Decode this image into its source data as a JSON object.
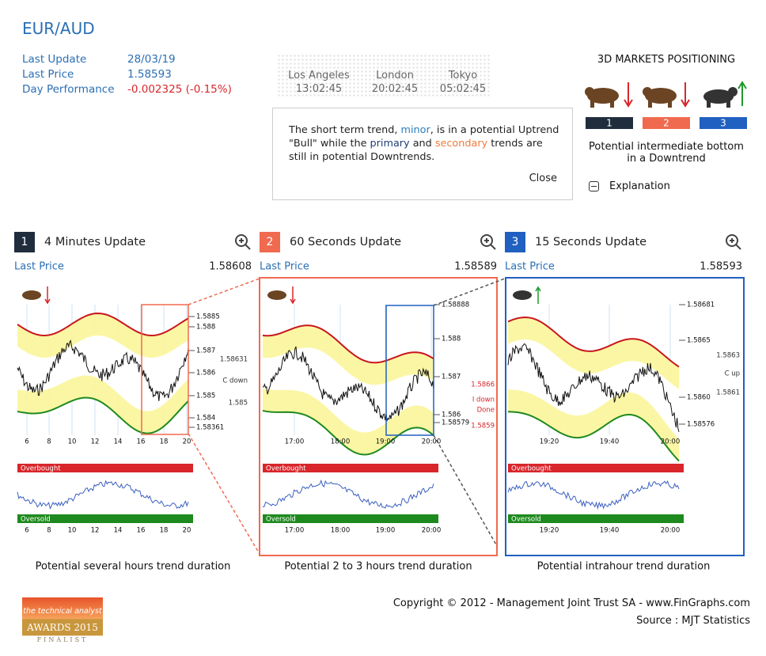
{
  "header": {
    "symbol": "EUR/AUD",
    "last_update_label": "Last Update",
    "last_update": "28/03/19",
    "last_price_label": "Last Price",
    "last_price": "1.58593",
    "day_perf_label": "Day Performance",
    "day_perf": "-0.002325 (-0.15%)"
  },
  "clocks": [
    {
      "city": "Los Angeles",
      "time": "13:02:45"
    },
    {
      "city": "London",
      "time": "20:02:45"
    },
    {
      "city": "Tokyo",
      "time": "05:02:45"
    }
  ],
  "note": {
    "parts": [
      "The short term trend, ",
      "minor",
      ", is in a potential Uptrend \"Bull\" while the ",
      "primary",
      " and ",
      "secondary",
      " trends are still in potential Downtrends."
    ],
    "close": "Close"
  },
  "positioning": {
    "title": "3D MARKETS POSITIONING",
    "badges": [
      "1",
      "2",
      "3"
    ],
    "summary": "Potential intermediate bottom in a Downtrend",
    "explanation": "Explanation"
  },
  "panels": [
    {
      "number": "1",
      "title": "4 Minutes Update",
      "last_price_label": "Last Price",
      "last_price": "1.58608",
      "price_ticks": [
        "1.5885",
        "1.588",
        "1.587",
        "1.586",
        "1.585",
        "1.584",
        "1.58361"
      ],
      "side_labels": [
        "1.58631",
        "C down",
        "1.585"
      ],
      "x_ticks": [
        "6",
        "8",
        "10",
        "12",
        "14",
        "16",
        "18",
        "20"
      ],
      "overbought": "Overbought",
      "oversold": "Oversold",
      "duration": "Potential several hours trend duration"
    },
    {
      "number": "2",
      "title": "60 Seconds Update",
      "last_price_label": "Last Price",
      "last_price": "1.58589",
      "price_ticks": [
        "1.58888",
        "1.588",
        "1.587",
        "1.586",
        "1.58579"
      ],
      "side_labels": [
        "1.5866",
        "I down",
        "Done",
        "1.5859"
      ],
      "x_ticks": [
        "17:00",
        "18:00",
        "19:00",
        "20:00"
      ],
      "overbought": "Overbought",
      "oversold": "Oversold",
      "duration": "Potential 2 to 3 hours trend duration"
    },
    {
      "number": "3",
      "title": "15 Seconds Update",
      "last_price_label": "Last Price",
      "last_price": "1.58593",
      "price_ticks": [
        "1.58681",
        "1.5865",
        "1.5860",
        "1.58576"
      ],
      "side_labels": [
        "1.5863",
        "C up",
        "1.5861"
      ],
      "x_ticks": [
        "19:20",
        "19:40",
        "20:00"
      ],
      "overbought": "Overbought",
      "oversold": "Oversold",
      "duration": "Potential intrahour trend duration"
    }
  ],
  "footer": {
    "copyright": "Copyright © 2012 - Management Joint Trust SA - www.FinGraphs.com",
    "source": "Source : MJT Statistics",
    "award": [
      "the technical analyst",
      "AWARDS 2015",
      "FINALIST"
    ]
  }
}
